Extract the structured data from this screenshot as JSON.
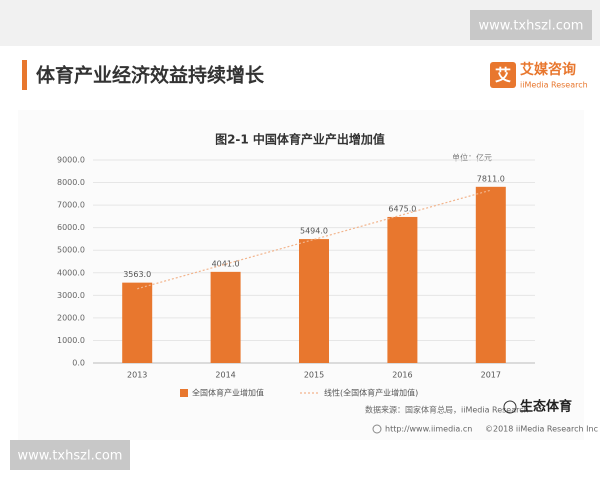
{
  "watermark_top": "www.txhszl.com",
  "watermark_bottom": "www.txhszl.com",
  "page_title": "体育产业经济效益持续增长",
  "logo": {
    "mark": "艾",
    "name": "艾媒咨询",
    "sub": "iiMedia Research"
  },
  "chart_data": {
    "type": "bar",
    "title": "图2-1 中国体育产业产出增加值",
    "unit": "单位：亿元",
    "categories": [
      "2013",
      "2014",
      "2015",
      "2016",
      "2017"
    ],
    "series": [
      {
        "name": "全国体育产业增加值",
        "color": "#e8772e",
        "values": [
          3563,
          4041,
          5494,
          6475,
          7811
        ],
        "value_labels": [
          "3563.0",
          "4041.0",
          "5494.0",
          "6475.0",
          "7811.0"
        ]
      }
    ],
    "trendline": {
      "name": "线性(全国体育产业增加值)",
      "color": "#f2b48c"
    },
    "ylim": [
      0,
      9000
    ],
    "yticks": [
      {
        "value": 0,
        "label": "0.0"
      },
      {
        "value": 1000,
        "label": "1000.0"
      },
      {
        "value": 2000,
        "label": "2000.0"
      },
      {
        "value": 3000,
        "label": "3000.0"
      },
      {
        "value": 4000,
        "label": "4000.0"
      },
      {
        "value": 5000,
        "label": "5000.0"
      },
      {
        "value": 6000,
        "label": "6000.0"
      },
      {
        "value": 7000,
        "label": "7000.0"
      },
      {
        "value": 8000,
        "label": "8000.0"
      },
      {
        "value": 9000,
        "label": "9000.0"
      }
    ],
    "grid": true,
    "legend": "bottom",
    "source": "数据来源：国家体育总局，iiMedia Research"
  },
  "footer": {
    "url": "http://www.iimedia.cn",
    "copyright": "©2018 iiMedia Research Inc"
  },
  "overlay_badge": "生态体育"
}
